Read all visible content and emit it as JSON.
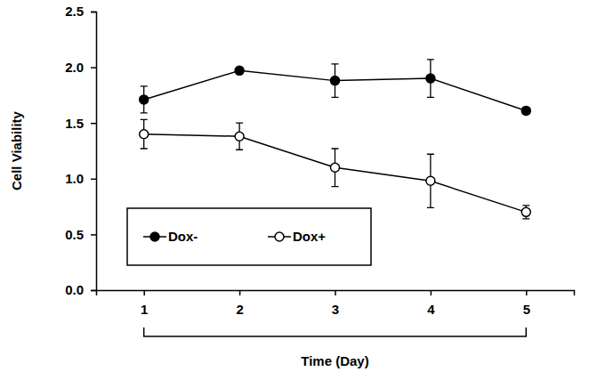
{
  "chart_data": {
    "type": "line",
    "x_label": "Time (Day)",
    "y_label": "Cell Viability",
    "x": [
      1,
      2,
      3,
      4,
      5
    ],
    "series": [
      {
        "name": "Dox-",
        "color": "#000000",
        "marker": "circle",
        "line_style": "solid",
        "values": [
          1.71,
          1.97,
          1.88,
          1.9,
          1.61
        ],
        "errors": [
          0.12,
          0.03,
          0.15,
          0.17,
          0.03
        ]
      },
      {
        "name": "Dox+",
        "color": "#000000",
        "marker": "circle-open",
        "line_style": "solid",
        "values": [
          1.4,
          1.38,
          1.1,
          0.98,
          0.7
        ],
        "errors": [
          0.13,
          0.12,
          0.17,
          0.24,
          0.06
        ]
      }
    ],
    "xlim": [
      0.5,
      5.5
    ],
    "xticks": [
      1,
      2,
      3,
      4,
      5
    ],
    "ylim": [
      0,
      2.5
    ],
    "yticks": [
      {
        "value": 0,
        "label": "0.0"
      },
      0.5,
      {
        "value": 1,
        "label": "1.0"
      },
      1.5,
      {
        "value": 2,
        "label": "2.0"
      },
      2.5
    ],
    "grid": false,
    "legend": "lower left"
  }
}
